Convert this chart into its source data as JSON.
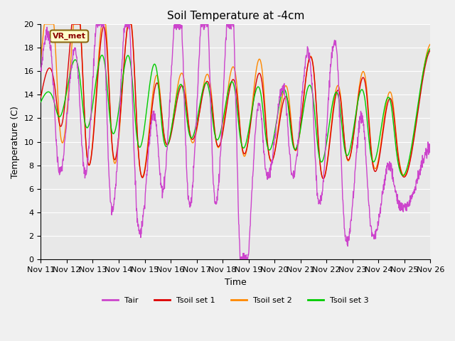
{
  "title": "Soil Temperature at -4cm",
  "xlabel": "Time",
  "ylabel": "Temperature (C)",
  "ylim": [
    0,
    20
  ],
  "yticks": [
    0,
    2,
    4,
    6,
    8,
    10,
    12,
    14,
    16,
    18,
    20
  ],
  "annotation_text": "VR_met",
  "fig_facecolor": "#f0f0f0",
  "ax_facecolor": "#e8e8e8",
  "colors": {
    "Tair": "#cc44cc",
    "Tsoil_set1": "#dd0000",
    "Tsoil_set2": "#ff8800",
    "Tsoil_set3": "#00cc00"
  },
  "legend_labels": [
    "Tair",
    "Tsoil set 1",
    "Tsoil set 2",
    "Tsoil set 3"
  ],
  "xtick_labels": [
    "Nov 11",
    "Nov 12",
    "Nov 13",
    "Nov 14",
    "Nov 15",
    "Nov 16",
    "Nov 17",
    "Nov 18",
    "Nov 19",
    "Nov 20",
    "Nov 21",
    "Nov 22",
    "Nov 23",
    "Nov 24",
    "Nov 25",
    "Nov 26"
  ],
  "line_width": 1.0
}
